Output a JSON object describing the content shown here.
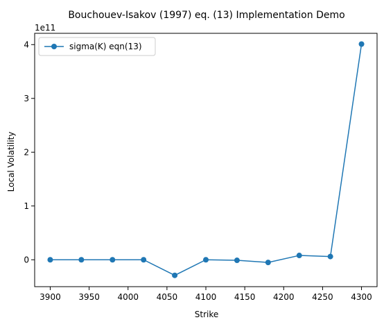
{
  "chart_data": {
    "type": "line",
    "title": "Bouchouev-Isakov (1997) eq. (13) Implementation Demo",
    "xlabel": "Strike",
    "ylabel": "Local Volatility",
    "offset_label": "1e11",
    "x": [
      3900,
      3940,
      3980,
      4020,
      4060,
      4100,
      4140,
      4180,
      4220,
      4260,
      4300
    ],
    "series": [
      {
        "name": "sigma(K) eqn(13)",
        "color": "#1f77b4",
        "marker": "circle",
        "values": [
          0.0,
          0.0,
          0.0,
          0.0,
          -0.29,
          0.0,
          -0.01,
          -0.05,
          0.08,
          0.06,
          4.01
        ]
      }
    ],
    "xlim": [
      3880,
      4320
    ],
    "ylim": [
      -0.5,
      4.21
    ],
    "xticks": [
      3900,
      3950,
      4000,
      4050,
      4100,
      4150,
      4200,
      4250,
      4300
    ],
    "yticks": [
      0,
      1,
      2,
      3,
      4
    ],
    "grid": false,
    "legend_position": "top-left"
  }
}
